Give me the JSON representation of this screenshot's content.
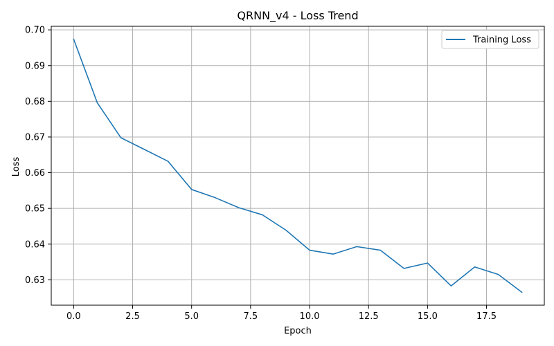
{
  "chart_data": {
    "type": "line",
    "title": "QRNN_v4 - Loss Trend",
    "xlabel": "Epoch",
    "ylabel": "Loss",
    "xlim": [
      -0.95,
      19.95
    ],
    "ylim": [
      0.6229,
      0.701
    ],
    "xticks": [
      0.0,
      2.5,
      5.0,
      7.5,
      10.0,
      12.5,
      15.0,
      17.5
    ],
    "xtick_labels": [
      "0.0",
      "2.5",
      "5.0",
      "7.5",
      "10.0",
      "12.5",
      "15.0",
      "17.5"
    ],
    "yticks": [
      0.63,
      0.64,
      0.65,
      0.66,
      0.67,
      0.68,
      0.69,
      0.7
    ],
    "ytick_labels": [
      "0.63",
      "0.64",
      "0.65",
      "0.66",
      "0.67",
      "0.68",
      "0.69",
      "0.70"
    ],
    "grid": true,
    "legend_position": "top-right",
    "series": [
      {
        "name": "Training Loss",
        "color": "#1f77b4",
        "x": [
          0,
          1,
          2,
          3,
          4,
          5,
          6,
          7,
          8,
          9,
          10,
          11,
          12,
          13,
          14,
          15,
          16,
          17,
          18,
          19
        ],
        "y": [
          0.6974,
          0.6796,
          0.6698,
          0.6665,
          0.6632,
          0.6553,
          0.653,
          0.6502,
          0.6482,
          0.6439,
          0.6383,
          0.6372,
          0.6393,
          0.6383,
          0.6332,
          0.6347,
          0.6283,
          0.6336,
          0.6315,
          0.6265
        ]
      }
    ]
  },
  "colors": {
    "axis": "#000000",
    "grid": "#b0b0b0",
    "background": "#ffffff",
    "legend_border": "#cccccc"
  }
}
